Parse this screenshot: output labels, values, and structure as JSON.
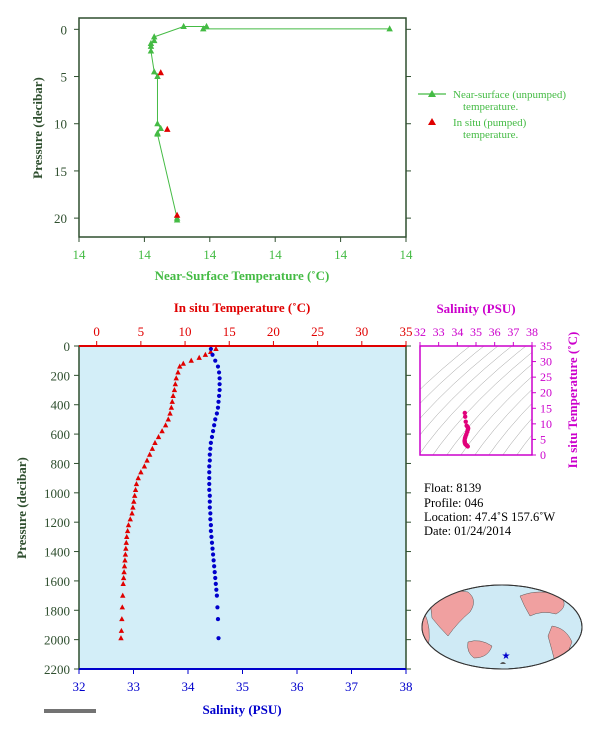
{
  "colors": {
    "green": "#44bb44",
    "red": "#e00000",
    "blue": "#0000cc",
    "magenta": "#cc00cc",
    "pink": "#e0007a",
    "axis_dark": "#2f4f2f",
    "panel_bg": "#d3eef8",
    "land": "#f0a0a0",
    "ocean": "#cfeaf5"
  },
  "top_chart": {
    "ylabel": "Pressure (decibar)",
    "xlabel": "Near-Surface Temperature (˚C)",
    "xtick_labels": [
      "14",
      "14",
      "14",
      "14",
      "14",
      "14"
    ],
    "ytick_labels": [
      "0",
      "5",
      "10",
      "15",
      "20"
    ],
    "legend": {
      "unpumped_line1": "Near-surface (unpumped)",
      "unpumped_line2": "temperature.",
      "pumped_line1": "In situ (pumped)",
      "pumped_line2": "temperature."
    }
  },
  "bottom_chart": {
    "ylabel": "Pressure (decibar)",
    "top_xlabel": "In situ Temperature (˚C)",
    "bottom_xlabel": "Salinity (PSU)",
    "temp_ticks": [
      "0",
      "5",
      "10",
      "15",
      "20",
      "25",
      "30",
      "35"
    ],
    "sal_ticks": [
      "32",
      "33",
      "34",
      "35",
      "36",
      "37",
      "38"
    ],
    "pressure_ticks": [
      "0",
      "200",
      "400",
      "600",
      "800",
      "1000",
      "1200",
      "1400",
      "1600",
      "1800",
      "2000",
      "2200"
    ]
  },
  "ts_chart": {
    "top_label": "Salinity (PSU)",
    "right_label": "In situ Temperature (˚C)",
    "sal_ticks": [
      "32",
      "33",
      "34",
      "35",
      "36",
      "37",
      "38"
    ],
    "temp_ticks": [
      "0",
      "5",
      "10",
      "15",
      "20",
      "25",
      "30",
      "35"
    ]
  },
  "info": {
    "float": "Float:  8139",
    "profile": "Profile:  046",
    "location": "Location:  47.4˚S  157.6˚W",
    "date": "Date:  01/24/2014"
  },
  "chart_data": [
    {
      "type": "line",
      "title": "",
      "xlabel": "Near-Surface Temperature (˚C)",
      "ylabel": "Pressure (decibar)",
      "xlim": [
        13.5,
        14.5
      ],
      "ylim": [
        22,
        -1.2
      ],
      "series": [
        {
          "name": "Near-surface (unpumped) temperature.",
          "x": [
            14.45,
            13.88,
            13.89,
            13.82,
            13.73,
            13.73,
            13.72,
            13.72,
            13.72,
            13.73,
            13.74,
            13.74,
            13.75,
            13.74,
            13.74,
            13.8,
            13.8
          ],
          "y": [
            -0.05,
            -0.05,
            -0.3,
            -0.3,
            0.8,
            1.2,
            1.5,
            1.8,
            2.3,
            4.5,
            5.0,
            10.0,
            10.5,
            11.0,
            11.1,
            20.0,
            20.2
          ]
        },
        {
          "name": "In situ (pumped) temperature.",
          "x": [
            13.75,
            13.77,
            13.8
          ],
          "y": [
            4.6,
            10.6,
            19.7
          ]
        }
      ]
    },
    {
      "type": "line",
      "title": "",
      "xlabel": "Salinity (PSU)",
      "ylabel": "Pressure (decibar)",
      "xlim": [
        32,
        38
      ],
      "ylim": [
        2200,
        0
      ],
      "series": [
        {
          "name": "In situ Temperature (˚C)",
          "axis": "top",
          "xlim": [
            -2,
            35
          ],
          "x": [
            13.5,
            12.9,
            12.3,
            11.6,
            10.7,
            9.8,
            9.4,
            9.2,
            9.0,
            8.9,
            8.8,
            8.65,
            8.55,
            8.45,
            8.3,
            8.1,
            7.8,
            7.4,
            7.0,
            6.6,
            6.3,
            6.0,
            5.7,
            5.4,
            5.0,
            4.7,
            4.5,
            4.4,
            4.3,
            4.2,
            4.1,
            4.0,
            3.8,
            3.6,
            3.5,
            3.4,
            3.35,
            3.3,
            3.25,
            3.2,
            3.15,
            3.1,
            3.05,
            3.0,
            2.95,
            2.9,
            2.85,
            2.8,
            2.75
          ],
          "y": [
            20,
            40,
            60,
            80,
            100,
            120,
            140,
            180,
            220,
            260,
            300,
            340,
            380,
            420,
            460,
            500,
            540,
            580,
            620,
            660,
            700,
            740,
            780,
            820,
            860,
            900,
            940,
            980,
            1020,
            1060,
            1100,
            1140,
            1180,
            1220,
            1260,
            1300,
            1340,
            1380,
            1420,
            1460,
            1500,
            1540,
            1580,
            1620,
            1700,
            1780,
            1860,
            1940,
            1990
          ]
        },
        {
          "name": "Salinity (PSU)",
          "axis": "bottom",
          "x": [
            34.42,
            34.45,
            34.5,
            34.55,
            34.57,
            34.58,
            34.58,
            34.58,
            34.57,
            34.56,
            34.55,
            34.53,
            34.5,
            34.48,
            34.46,
            34.44,
            34.42,
            34.41,
            34.4,
            34.4,
            34.39,
            34.39,
            34.39,
            34.39,
            34.39,
            34.4,
            34.4,
            34.4,
            34.41,
            34.41,
            34.42,
            34.42,
            34.43,
            34.44,
            34.45,
            34.46,
            34.47,
            34.48,
            34.49,
            34.5,
            34.51,
            34.52,
            34.53,
            34.54,
            34.55,
            34.56
          ],
          "y": [
            20,
            60,
            100,
            140,
            180,
            220,
            260,
            300,
            340,
            380,
            420,
            460,
            500,
            540,
            580,
            620,
            660,
            700,
            740,
            780,
            820,
            860,
            900,
            940,
            980,
            1020,
            1060,
            1100,
            1140,
            1180,
            1220,
            1260,
            1300,
            1340,
            1380,
            1420,
            1460,
            1500,
            1540,
            1580,
            1620,
            1660,
            1700,
            1780,
            1860,
            1990
          ]
        }
      ]
    },
    {
      "type": "scatter",
      "title": "",
      "xlabel": "Salinity (PSU)",
      "ylabel": "In situ Temperature (˚C)",
      "xlim": [
        32,
        38
      ],
      "ylim": [
        0,
        35
      ],
      "series": [
        {
          "name": "",
          "x": [
            34.4,
            34.42,
            34.45,
            34.5,
            34.55,
            34.57,
            34.58,
            34.56,
            34.53,
            34.48,
            34.44,
            34.41,
            34.39,
            34.39,
            34.4,
            34.41,
            34.43,
            34.46,
            34.5,
            34.53,
            34.56
          ],
          "y": [
            13.5,
            12.3,
            10.7,
            9.4,
            9.0,
            8.8,
            8.5,
            8.1,
            7.4,
            6.6,
            6.0,
            5.4,
            4.7,
            4.4,
            4.1,
            3.8,
            3.5,
            3.3,
            3.1,
            2.9,
            2.75
          ]
        }
      ]
    }
  ]
}
